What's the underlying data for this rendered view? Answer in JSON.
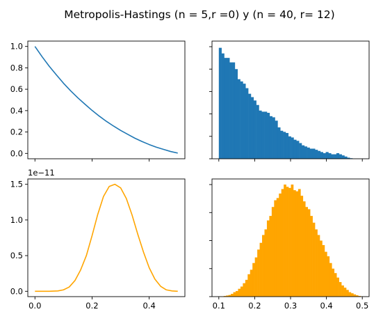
{
  "figure": {
    "title": "Metropolis-Hastings (n = 5,r =0) y (n = 40, r= 12)"
  },
  "colors": {
    "blue": "#1f77b4",
    "orange": "#ffa500",
    "axis": "#000000"
  },
  "chart_data": [
    {
      "id": "top-left",
      "type": "line",
      "title": "",
      "xlabel": "",
      "ylabel": "",
      "xlim": [
        -0.025,
        0.525
      ],
      "ylim": [
        -0.05,
        1.05
      ],
      "xticks": [
        0.0,
        0.2,
        0.4
      ],
      "xtick_labels_visible": false,
      "yticks": [
        0.0,
        0.2,
        0.4,
        0.6,
        0.8,
        1.0
      ],
      "ytick_labels": [
        "0.0",
        "0.2",
        "0.4",
        "0.6",
        "0.8",
        "1.0"
      ],
      "series": [
        {
          "x": [
            0.0,
            0.025,
            0.05,
            0.075,
            0.1,
            0.125,
            0.15,
            0.175,
            0.2,
            0.225,
            0.25,
            0.275,
            0.3,
            0.325,
            0.35,
            0.375,
            0.4,
            0.425,
            0.45,
            0.475,
            0.5
          ],
          "y": [
            1.0,
            0.904,
            0.815,
            0.734,
            0.656,
            0.585,
            0.52,
            0.46,
            0.402,
            0.349,
            0.3,
            0.256,
            0.215,
            0.178,
            0.142,
            0.111,
            0.083,
            0.058,
            0.038,
            0.018,
            0.003
          ]
        }
      ]
    },
    {
      "id": "top-right",
      "type": "bar",
      "title": "",
      "xlim": [
        0.081,
        0.519
      ],
      "ylim": [
        0,
        1.05
      ],
      "xticks": [
        0.1,
        0.2,
        0.3,
        0.4,
        0.5
      ],
      "xtick_labels_visible": false,
      "yticks": [
        0.0,
        0.2,
        0.4,
        0.6,
        0.8,
        1.0
      ],
      "ytick_labels_visible": false,
      "bin_start": 0.1,
      "bin_width": 0.00745,
      "values": [
        0.99,
        0.94,
        0.9,
        0.9,
        0.86,
        0.86,
        0.8,
        0.71,
        0.69,
        0.67,
        0.63,
        0.58,
        0.55,
        0.52,
        0.48,
        0.43,
        0.42,
        0.42,
        0.41,
        0.38,
        0.37,
        0.34,
        0.28,
        0.25,
        0.24,
        0.23,
        0.2,
        0.19,
        0.17,
        0.16,
        0.14,
        0.12,
        0.11,
        0.1,
        0.09,
        0.09,
        0.08,
        0.07,
        0.06,
        0.05,
        0.06,
        0.05,
        0.04,
        0.04,
        0.05,
        0.04,
        0.03,
        0.02,
        0.01,
        0.005,
        0.0
      ]
    },
    {
      "id": "bottom-left",
      "type": "line",
      "title": "",
      "offset_text": "1e−11",
      "xlim": [
        -0.025,
        0.525
      ],
      "ylim": [
        -0.075,
        1.575
      ],
      "xticks": [
        0.0,
        0.2,
        0.4
      ],
      "xtick_labels": [
        "0.0",
        "0.2",
        "0.4"
      ],
      "yticks": [
        0.0,
        0.5,
        1.0,
        1.5
      ],
      "ytick_labels": [
        "0.0",
        "0.5",
        "1.0",
        "1.5"
      ],
      "series": [
        {
          "x": [
            0.0,
            0.05,
            0.08,
            0.1,
            0.12,
            0.14,
            0.16,
            0.18,
            0.2,
            0.22,
            0.24,
            0.26,
            0.28,
            0.3,
            0.32,
            0.34,
            0.36,
            0.38,
            0.4,
            0.42,
            0.44,
            0.46,
            0.48,
            0.5
          ],
          "y": [
            0.0,
            0.0,
            0.005,
            0.02,
            0.06,
            0.15,
            0.3,
            0.5,
            0.78,
            1.08,
            1.33,
            1.47,
            1.5,
            1.45,
            1.3,
            1.07,
            0.8,
            0.55,
            0.33,
            0.17,
            0.07,
            0.02,
            0.005,
            0.0
          ]
        }
      ]
    },
    {
      "id": "bottom-right",
      "type": "bar",
      "title": "",
      "xlim": [
        0.081,
        0.519
      ],
      "ylim": [
        0,
        1.05
      ],
      "xticks": [
        0.1,
        0.2,
        0.3,
        0.4,
        0.5
      ],
      "xtick_labels": [
        "0.1",
        "0.2",
        "0.3",
        "0.4",
        "0.5"
      ],
      "yticks": [
        0.0,
        0.25,
        0.5,
        0.75,
        1.0
      ],
      "ytick_labels_visible": false,
      "bin_start": 0.1,
      "bin_width": 0.0067,
      "values": [
        0.003,
        0.003,
        0.006,
        0.01,
        0.015,
        0.025,
        0.04,
        0.05,
        0.07,
        0.09,
        0.12,
        0.15,
        0.2,
        0.24,
        0.3,
        0.35,
        0.42,
        0.48,
        0.55,
        0.6,
        0.68,
        0.72,
        0.8,
        0.86,
        0.88,
        0.92,
        0.96,
        1.0,
        0.98,
        0.97,
        1.0,
        0.95,
        0.94,
        0.96,
        0.9,
        0.85,
        0.8,
        0.78,
        0.72,
        0.66,
        0.6,
        0.55,
        0.5,
        0.46,
        0.4,
        0.36,
        0.3,
        0.25,
        0.21,
        0.17,
        0.13,
        0.1,
        0.08,
        0.06,
        0.04,
        0.03,
        0.02,
        0.012,
        0.006,
        0.003
      ]
    }
  ]
}
